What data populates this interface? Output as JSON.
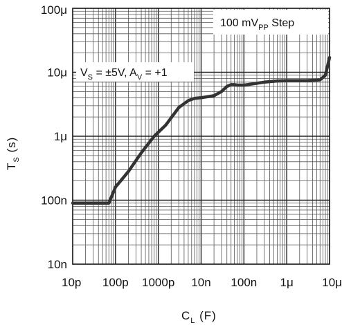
{
  "chart_data": {
    "type": "line",
    "x_scale": "log",
    "y_scale": "log",
    "xlim": [
      1e-11,
      1e-05
    ],
    "ylim": [
      1e-08,
      0.0001
    ],
    "grid": true,
    "xlabel": {
      "main": "C",
      "sub": "L",
      "unit": " (F)"
    },
    "ylabel": {
      "main": "T",
      "sub": "S",
      "unit": " (s)"
    },
    "x_ticks": [
      {
        "value": 1e-11,
        "label": "10p"
      },
      {
        "value": 1e-10,
        "label": "100p"
      },
      {
        "value": 1e-09,
        "label": "1000p"
      },
      {
        "value": 1e-08,
        "label": "10n"
      },
      {
        "value": 1e-07,
        "label": "100n"
      },
      {
        "value": 1e-06,
        "label": "1μ"
      },
      {
        "value": 1e-05,
        "label": "10μ"
      }
    ],
    "y_ticks": [
      {
        "value": 1e-08,
        "label": "10n"
      },
      {
        "value": 1e-07,
        "label": "100n"
      },
      {
        "value": 1e-06,
        "label": "1μ"
      },
      {
        "value": 1e-05,
        "label": "10μ"
      },
      {
        "value": 0.0001,
        "label": "100μ"
      }
    ],
    "annotations": {
      "step": {
        "pre": "100 mV",
        "sub": "PP",
        "post": " Step"
      },
      "conditions": {
        "part1": "V",
        "sub1": "S",
        "part2": " = ±5V, A",
        "sub2": "V",
        "part3": " = +1"
      }
    },
    "series": [
      {
        "x": [
          1e-11,
          3e-11,
          5e-11,
          7e-11,
          1e-10,
          2e-10,
          4e-10,
          8e-10,
          1.5e-09,
          3e-09,
          5e-09,
          7e-09,
          1e-08,
          2e-08,
          3e-08,
          4e-08,
          5e-08,
          6e-08,
          7e-08,
          1e-07,
          3e-07,
          6e-07,
          1e-06,
          3e-06,
          6e-06,
          8e-06,
          1e-05
        ],
        "y": [
          9e-08,
          9e-08,
          9e-08,
          9e-08,
          1.6e-07,
          2.8e-07,
          5.5e-07,
          1e-06,
          1.5e-06,
          2.8e-06,
          3.6e-06,
          3.9e-06,
          4e-06,
          4.3e-06,
          5e-06,
          6e-06,
          6.4e-06,
          6.4e-06,
          6.3e-06,
          6.3e-06,
          7e-06,
          7.3e-06,
          7.4e-06,
          7.4e-06,
          7.6e-06,
          9e-06,
          1.7e-05
        ]
      }
    ]
  }
}
